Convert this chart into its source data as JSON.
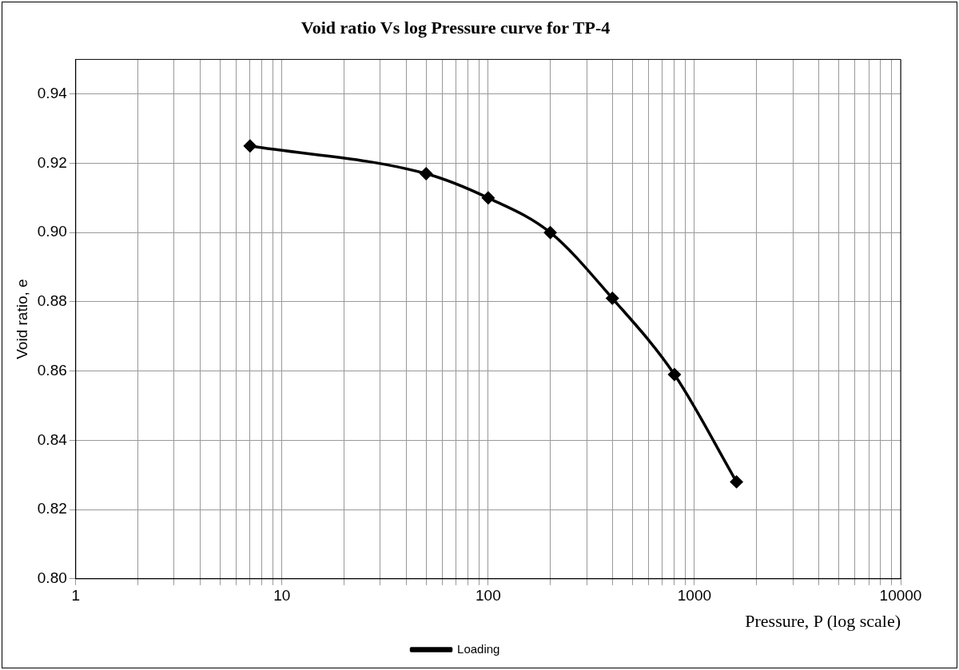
{
  "chart_data": {
    "type": "line",
    "title": "Void ratio Vs log Pressure curve for TP-4",
    "xlabel": "Pressure, P (log scale)",
    "ylabel": "Void ratio, e",
    "x": [
      7,
      50,
      100,
      200,
      400,
      800,
      1600
    ],
    "series": [
      {
        "name": "Loading",
        "color": "#000000",
        "values": [
          0.925,
          0.917,
          0.91,
          0.9,
          0.881,
          0.859,
          0.828
        ]
      }
    ],
    "log": "x",
    "xlim": [
      1,
      10000
    ],
    "xticks": [
      1,
      {
        "value": 2,
        "label": null
      },
      {
        "value": 3,
        "label": null
      },
      {
        "value": 4,
        "label": null
      },
      {
        "value": 5,
        "label": null
      },
      {
        "value": 6,
        "label": null
      },
      {
        "value": 7,
        "label": null
      },
      {
        "value": 8,
        "label": null
      },
      {
        "value": 9,
        "label": null
      },
      10,
      {
        "value": 20,
        "label": null
      },
      {
        "value": 30,
        "label": null
      },
      {
        "value": 40,
        "label": null
      },
      {
        "value": 50,
        "label": null
      },
      {
        "value": 60,
        "label": null
      },
      {
        "value": 70,
        "label": null
      },
      {
        "value": 80,
        "label": null
      },
      {
        "value": 90,
        "label": null
      },
      100,
      {
        "value": 200,
        "label": null
      },
      {
        "value": 300,
        "label": null
      },
      {
        "value": 400,
        "label": null
      },
      {
        "value": 500,
        "label": null
      },
      {
        "value": 600,
        "label": null
      },
      {
        "value": 700,
        "label": null
      },
      {
        "value": 800,
        "label": null
      },
      {
        "value": 900,
        "label": null
      },
      1000,
      {
        "value": 2000,
        "label": null
      },
      {
        "value": 3000,
        "label": null
      },
      {
        "value": 4000,
        "label": null
      },
      {
        "value": 5000,
        "label": null
      },
      {
        "value": 6000,
        "label": null
      },
      {
        "value": 7000,
        "label": null
      },
      {
        "value": 8000,
        "label": null
      },
      {
        "value": 9000,
        "label": null
      },
      10000
    ],
    "ylim": [
      0.8,
      0.95
    ],
    "yticks": [
      {
        "value": 0.8,
        "label": "0.80"
      },
      {
        "value": 0.82,
        "label": "0.82"
      },
      {
        "value": 0.84,
        "label": "0.84"
      },
      {
        "value": 0.86,
        "label": "0.86"
      },
      {
        "value": 0.88,
        "label": "0.88"
      },
      {
        "value": 0.9,
        "label": "0.90"
      },
      {
        "value": 0.92,
        "label": "0.92"
      },
      {
        "value": 0.94,
        "label": "0.94"
      }
    ],
    "grid": true,
    "legend": "bottom",
    "marker": "diamond",
    "line_style": "solid"
  }
}
